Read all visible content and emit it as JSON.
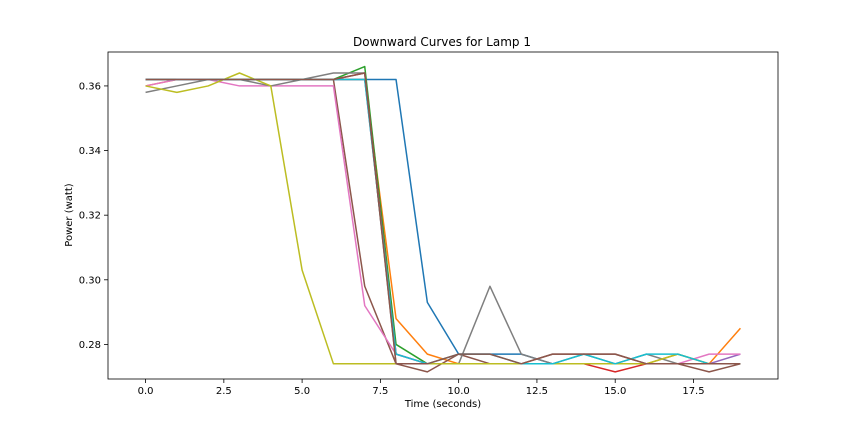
{
  "chart_data": {
    "type": "line",
    "title": "Downward Curves for Lamp 1",
    "xlabel": "Time (seconds)",
    "ylabel": "Power (watt)",
    "xlim": [
      -1.2,
      20.2
    ],
    "ylim": [
      0.2693,
      0.3705
    ],
    "xticks": [
      0.0,
      2.5,
      5.0,
      7.5,
      10.0,
      12.5,
      15.0,
      17.5
    ],
    "xtick_labels": [
      "0.0",
      "2.5",
      "5.0",
      "7.5",
      "10.0",
      "12.5",
      "15.0",
      "17.5"
    ],
    "yticks": [
      0.28,
      0.3,
      0.32,
      0.34,
      0.36
    ],
    "ytick_labels": [
      "0.28",
      "0.30",
      "0.32",
      "0.34",
      "0.36"
    ],
    "grid": false,
    "x": [
      0,
      1,
      2,
      3,
      4,
      5,
      6,
      7,
      8,
      9,
      10,
      11,
      12,
      13,
      14,
      15,
      16,
      17,
      18,
      19
    ],
    "series": [
      {
        "color": "#1f77b4",
        "values": [
          0.362,
          0.362,
          0.362,
          0.362,
          0.362,
          0.362,
          0.362,
          0.362,
          0.362,
          0.293,
          0.277,
          0.277,
          0.277,
          0.274,
          0.274,
          0.274,
          0.274,
          0.274,
          0.274,
          0.274
        ]
      },
      {
        "color": "#ff7f0e",
        "values": [
          0.36,
          0.362,
          0.362,
          0.362,
          0.362,
          0.362,
          0.362,
          0.362,
          0.288,
          0.277,
          0.274,
          0.274,
          0.274,
          0.274,
          0.274,
          0.274,
          0.274,
          0.277,
          0.274,
          0.285
        ]
      },
      {
        "color": "#2ca02c",
        "values": [
          0.362,
          0.362,
          0.362,
          0.362,
          0.362,
          0.362,
          0.362,
          0.366,
          0.28,
          0.274,
          0.274,
          0.274,
          0.274,
          0.274,
          0.274,
          0.274,
          0.274,
          0.274,
          0.274,
          0.274
        ]
      },
      {
        "color": "#d62728",
        "values": [
          0.362,
          0.362,
          0.362,
          0.362,
          0.362,
          0.362,
          0.362,
          0.364,
          0.277,
          0.274,
          0.274,
          0.274,
          0.274,
          0.274,
          0.274,
          0.2715,
          0.274,
          0.274,
          0.274,
          0.274
        ]
      },
      {
        "color": "#9467bd",
        "values": [
          0.362,
          0.362,
          0.362,
          0.362,
          0.362,
          0.362,
          0.362,
          0.362,
          0.277,
          0.274,
          0.274,
          0.274,
          0.274,
          0.274,
          0.274,
          0.274,
          0.274,
          0.274,
          0.274,
          0.277
        ]
      },
      {
        "color": "#8c564b",
        "values": [
          0.362,
          0.362,
          0.362,
          0.362,
          0.362,
          0.362,
          0.362,
          0.298,
          0.274,
          0.2715,
          0.277,
          0.274,
          0.274,
          0.277,
          0.277,
          0.277,
          0.274,
          0.274,
          0.2715,
          0.274
        ]
      },
      {
        "color": "#e377c2",
        "values": [
          0.36,
          0.362,
          0.362,
          0.36,
          0.36,
          0.36,
          0.36,
          0.292,
          0.277,
          0.274,
          0.274,
          0.274,
          0.274,
          0.274,
          0.274,
          0.274,
          0.274,
          0.274,
          0.277,
          0.277
        ]
      },
      {
        "color": "#7f7f7f",
        "values": [
          0.358,
          0.36,
          0.362,
          0.362,
          0.36,
          0.362,
          0.364,
          0.364,
          0.274,
          0.274,
          0.274,
          0.298,
          0.277,
          0.274,
          0.277,
          0.274,
          0.277,
          0.274,
          0.274,
          0.274
        ]
      },
      {
        "color": "#bcbd22",
        "values": [
          0.36,
          0.358,
          0.36,
          0.364,
          0.36,
          0.303,
          0.274,
          0.274,
          0.274,
          0.274,
          0.274,
          0.274,
          0.274,
          0.274,
          0.274,
          0.274,
          0.274,
          0.277,
          0.274,
          0.274
        ]
      },
      {
        "color": "#17becf",
        "values": [
          0.362,
          0.362,
          0.362,
          0.362,
          0.362,
          0.362,
          0.362,
          0.362,
          0.277,
          0.274,
          0.277,
          0.277,
          0.274,
          0.274,
          0.277,
          0.274,
          0.277,
          0.277,
          0.274,
          0.274
        ]
      },
      {
        "color": "#8c564b",
        "values": [
          0.362,
          0.362,
          0.362,
          0.362,
          0.362,
          0.362,
          0.362,
          0.364,
          0.274,
          0.274,
          0.277,
          0.277,
          0.274,
          0.277,
          0.277,
          0.277,
          0.274,
          0.274,
          0.274,
          0.274
        ]
      }
    ]
  }
}
